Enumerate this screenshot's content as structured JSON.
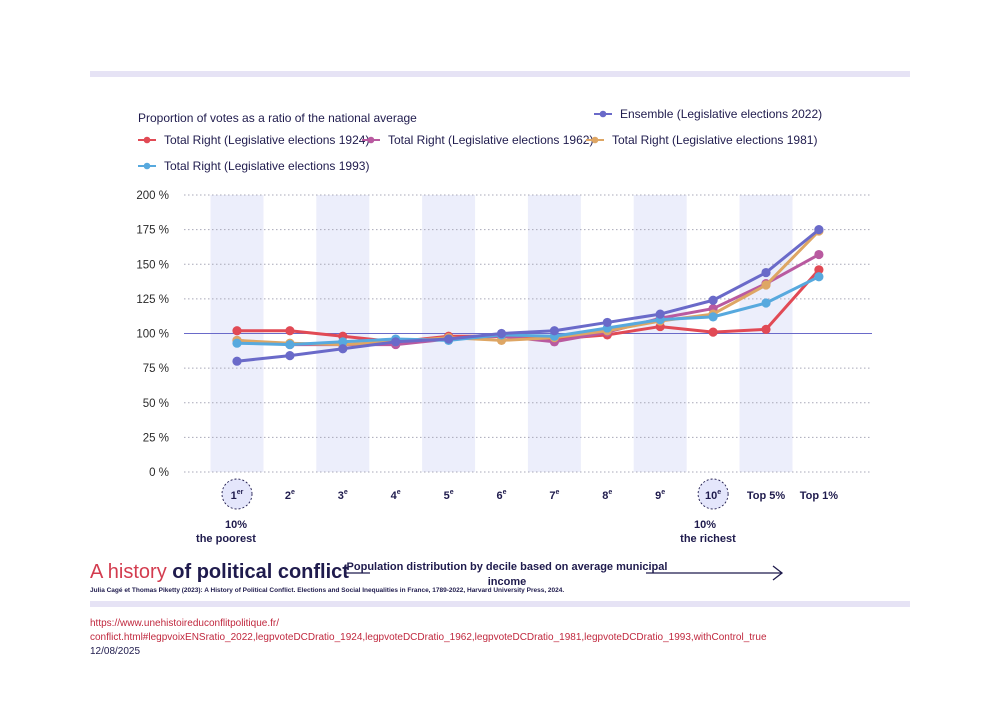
{
  "chart_data": {
    "type": "line",
    "ylabel": "Proportion of votes as a ratio of the national average",
    "xlabel": "Population distribution by decile based on average municipal income",
    "categories": [
      {
        "main": "1",
        "sup": "er"
      },
      {
        "main": "2",
        "sup": "e"
      },
      {
        "main": "3",
        "sup": "e"
      },
      {
        "main": "4",
        "sup": "e"
      },
      {
        "main": "5",
        "sup": "e"
      },
      {
        "main": "6",
        "sup": "e"
      },
      {
        "main": "7",
        "sup": "e"
      },
      {
        "main": "8",
        "sup": "e"
      },
      {
        "main": "9",
        "sup": "e"
      },
      {
        "main": "10",
        "sup": "e"
      },
      {
        "main": "Top 5%",
        "sup": ""
      },
      {
        "main": "Top 1%",
        "sup": ""
      }
    ],
    "yticks": [
      "0 %",
      "25 %",
      "50 %",
      "75 %",
      "100 %",
      "125 %",
      "150 %",
      "175 %",
      "200 %"
    ],
    "ylim": [
      0,
      200
    ],
    "reference_line": 100,
    "grid": "horizontal dotted",
    "legend_position": "top",
    "extreme_labels": {
      "poorest": [
        "10%",
        "the poorest"
      ],
      "richest": [
        "10%",
        "the richest"
      ]
    },
    "series": [
      {
        "name": "Ensemble (Legislative elections 2022)",
        "color": "#6a6ac9",
        "values": [
          80,
          84,
          89,
          94,
          96,
          100,
          102,
          108,
          114,
          124,
          144,
          175
        ]
      },
      {
        "name": "Total Right (Legislative elections 1924)",
        "color": "#e14a55",
        "values": [
          102,
          102,
          98,
          94,
          98,
          98,
          96,
          99,
          105,
          101,
          103,
          146
        ]
      },
      {
        "name": "Total Right (Legislative elections 1962)",
        "color": "#b95aa0",
        "values": [
          95,
          92,
          92,
          92,
          96,
          98,
          94,
          101,
          111,
          118,
          136,
          157
        ]
      },
      {
        "name": "Total Right (Legislative elections 1981)",
        "color": "#dea664",
        "values": [
          95,
          93,
          92,
          94,
          97,
          95,
          97,
          102,
          109,
          114,
          135,
          174
        ]
      },
      {
        "name": "Total Right (Legislative elections 1993)",
        "color": "#57a9de",
        "values": [
          93,
          92,
          94,
          96,
          95,
          99,
          98,
          104,
          110,
          112,
          122,
          141
        ]
      }
    ]
  },
  "brand": {
    "light": "A history ",
    "bold": "of political conflict"
  },
  "citation": "Julia Cagé et Thomas Piketty (2023): A History of Political Conflict. Elections and Social Inequalities in France, 1789-2022, Harvard University Press, 2024.",
  "url_line1": "https://www.unehistoireduconflitpolitique.fr/",
  "url_line2": "conflict.html#legpvoixENSratio_2022,legpvoteDCDratio_1924,legpvoteDCDratio_1962,legpvoteDCDratio_1981,legpvoteDCDratio_1993,withControl_true",
  "date": "12/08/2025"
}
